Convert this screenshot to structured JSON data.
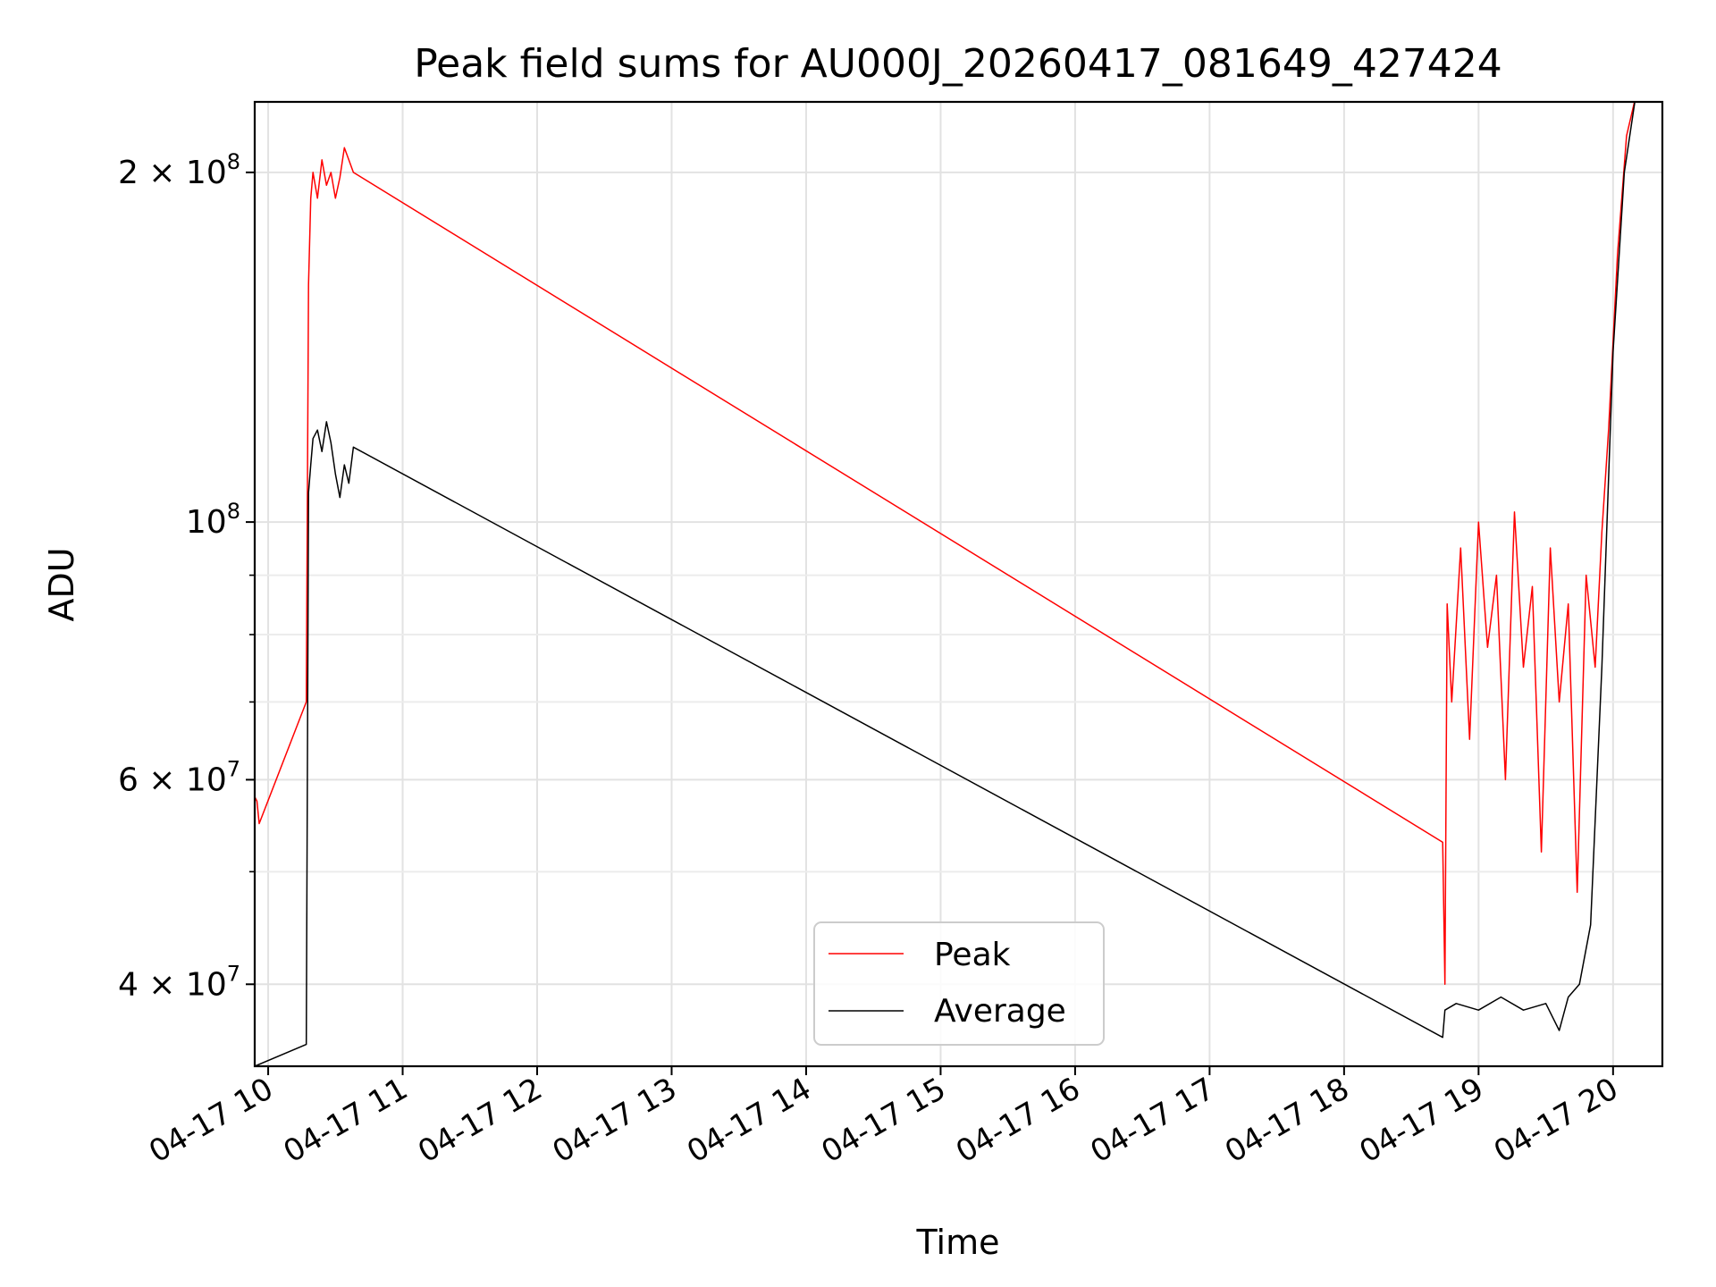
{
  "chart_data": {
    "type": "line",
    "title": "Peak field sums for AU000J_20260417_081649_427424",
    "xlabel": "Time",
    "ylabel": "ADU",
    "yscale": "log",
    "xlim": [
      "2026-04-17 09:54",
      "2026-04-17 20:22"
    ],
    "ylim": [
      34000000,
      230000000
    ],
    "grid": true,
    "legend_position": "lower center",
    "x_ticks": [
      {
        "t": "2026-04-17 10:00",
        "label": "04-17 10"
      },
      {
        "t": "2026-04-17 11:00",
        "label": "04-17 11"
      },
      {
        "t": "2026-04-17 12:00",
        "label": "04-17 12"
      },
      {
        "t": "2026-04-17 13:00",
        "label": "04-17 13"
      },
      {
        "t": "2026-04-17 14:00",
        "label": "04-17 14"
      },
      {
        "t": "2026-04-17 15:00",
        "label": "04-17 15"
      },
      {
        "t": "2026-04-17 16:00",
        "label": "04-17 16"
      },
      {
        "t": "2026-04-17 17:00",
        "label": "04-17 17"
      },
      {
        "t": "2026-04-17 18:00",
        "label": "04-17 18"
      },
      {
        "t": "2026-04-17 19:00",
        "label": "04-17 19"
      },
      {
        "t": "2026-04-17 20:00",
        "label": "04-17 20"
      }
    ],
    "y_major_ticks": [
      {
        "value": 40000000,
        "mant": "4",
        "exp": "7"
      },
      {
        "value": 60000000,
        "mant": "6",
        "exp": "7"
      },
      {
        "value": 100000000,
        "mant": "",
        "exp": "8"
      },
      {
        "value": 200000000,
        "mant": "2",
        "exp": "8"
      }
    ],
    "y_minor_ticks": [
      50000000,
      70000000,
      80000000,
      90000000
    ],
    "series": [
      {
        "name": "Peak",
        "color": "#ff0000",
        "x": [
          "2026-04-17 09:54",
          "2026-04-17 09:55",
          "2026-04-17 09:56",
          "2026-04-17 10:17",
          "2026-04-17 10:18",
          "2026-04-17 10:19",
          "2026-04-17 10:20",
          "2026-04-17 10:22",
          "2026-04-17 10:24",
          "2026-04-17 10:26",
          "2026-04-17 10:28",
          "2026-04-17 10:30",
          "2026-04-17 10:32",
          "2026-04-17 10:34",
          "2026-04-17 10:36",
          "2026-04-17 10:38",
          "2026-04-17 18:44",
          "2026-04-17 18:45",
          "2026-04-17 18:46",
          "2026-04-17 18:48",
          "2026-04-17 18:52",
          "2026-04-17 18:56",
          "2026-04-17 19:00",
          "2026-04-17 19:04",
          "2026-04-17 19:08",
          "2026-04-17 19:12",
          "2026-04-17 19:16",
          "2026-04-17 19:20",
          "2026-04-17 19:24",
          "2026-04-17 19:28",
          "2026-04-17 19:32",
          "2026-04-17 19:36",
          "2026-04-17 19:40",
          "2026-04-17 19:44",
          "2026-04-17 19:48",
          "2026-04-17 19:52",
          "2026-04-17 19:55",
          "2026-04-17 19:58",
          "2026-04-17 20:02",
          "2026-04-17 20:06",
          "2026-04-17 20:10"
        ],
        "values": [
          58000000,
          57500000,
          55000000,
          70000000,
          160000000,
          190000000,
          200000000,
          190000000,
          205000000,
          195000000,
          200000000,
          190000000,
          198000000,
          210000000,
          205000000,
          200000000,
          53000000,
          40000000,
          85000000,
          70000000,
          95000000,
          65000000,
          100000000,
          78000000,
          90000000,
          60000000,
          102000000,
          75000000,
          88000000,
          52000000,
          95000000,
          70000000,
          85000000,
          48000000,
          90000000,
          75000000,
          98000000,
          120000000,
          170000000,
          215000000,
          232000000
        ]
      },
      {
        "name": "Average",
        "color": "#000000",
        "x": [
          "2026-04-17 09:54",
          "2026-04-17 10:17",
          "2026-04-17 10:18",
          "2026-04-17 10:19",
          "2026-04-17 10:20",
          "2026-04-17 10:22",
          "2026-04-17 10:24",
          "2026-04-17 10:26",
          "2026-04-17 10:28",
          "2026-04-17 10:30",
          "2026-04-17 10:32",
          "2026-04-17 10:34",
          "2026-04-17 10:36",
          "2026-04-17 10:38",
          "2026-04-17 18:44",
          "2026-04-17 18:45",
          "2026-04-17 18:50",
          "2026-04-17 19:00",
          "2026-04-17 19:10",
          "2026-04-17 19:20",
          "2026-04-17 19:30",
          "2026-04-17 19:36",
          "2026-04-17 19:40",
          "2026-04-17 19:45",
          "2026-04-17 19:50",
          "2026-04-17 19:55",
          "2026-04-17 20:00",
          "2026-04-17 20:05",
          "2026-04-17 20:10"
        ],
        "values": [
          34000000,
          35500000,
          106000000,
          112000000,
          118000000,
          120000000,
          115000000,
          122000000,
          117000000,
          110000000,
          105000000,
          112000000,
          108000000,
          116000000,
          36000000,
          38000000,
          38500000,
          38000000,
          39000000,
          38000000,
          38500000,
          36500000,
          39000000,
          40000000,
          45000000,
          75000000,
          140000000,
          200000000,
          232000000
        ]
      }
    ]
  }
}
